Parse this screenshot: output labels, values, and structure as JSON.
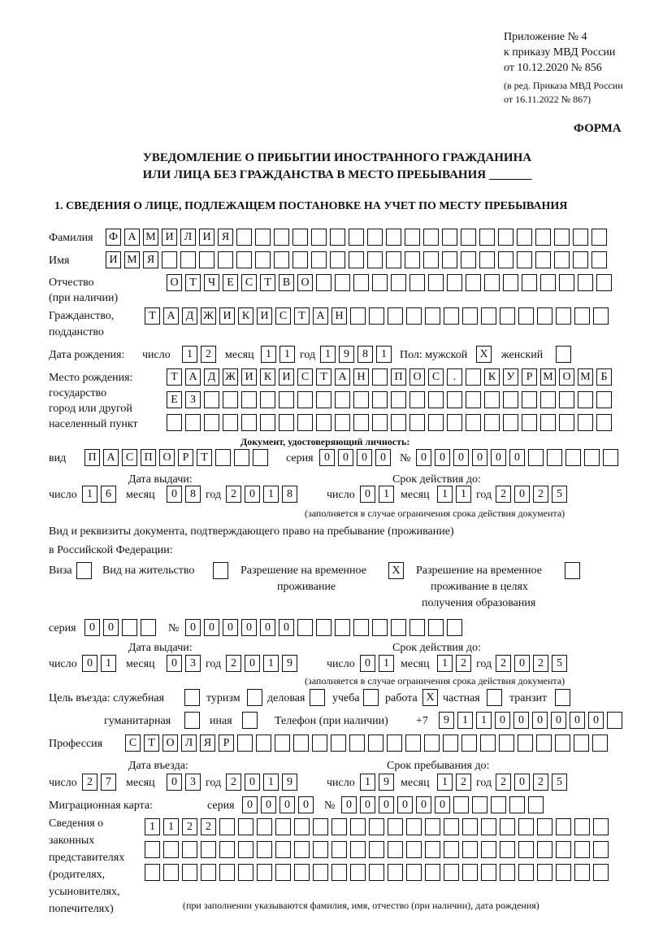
{
  "header": {
    "appendix": "Приложение № 4",
    "order": "к приказу МВД России",
    "order_date": "от 10.12.2020 № 856",
    "edit1": "(в ред. Приказа МВД России",
    "edit2": "от 16.11.2022 № 867)",
    "form": "ФОРМА",
    "title1": "УВЕДОМЛЕНИЕ О ПРИБЫТИИ ИНОСТРАННОГО ГРАЖДАНИНА",
    "title2": "ИЛИ ЛИЦА БЕЗ ГРАЖДАНСТВА В МЕСТО ПРЕБЫВАНИЯ _______",
    "section1": "1. СВЕДЕНИЯ О ЛИЦЕ, ПОДЛЕЖАЩЕМ ПОСТАНОВКЕ НА УЧЕТ ПО МЕСТУ ПРЕБЫВАНИЯ"
  },
  "person": {
    "surname_label": "Фамилия",
    "surname": "ФАМИЛИЯ",
    "name_label": "Имя",
    "name": "ИМЯ",
    "patronymic_label1": "Отчество",
    "patronymic_label2": "(при наличии)",
    "patronymic": "ОТЧЕСТВО",
    "citizenship_label1": "Гражданство,",
    "citizenship_label2": "подданство",
    "citizenship": "ТАДЖИКИСТАН",
    "birth_label": "Дата рождения:",
    "day_label": "число",
    "birth_day": "12",
    "month_label": "месяц",
    "birth_month": "11",
    "year_label": "год",
    "birth_year": "1981",
    "sex_label": "Пол: мужской",
    "male": "X",
    "female_label": "женский",
    "female": "",
    "birthplace_label1": "Место рождения:",
    "birthplace_label2": "государство",
    "birthplace_label3": "город или другой",
    "birthplace_label4": "населенный пункт",
    "birthplace_line1": "ТАДЖИКИСТАН ПОС. КУРМОМБ",
    "birthplace_line2": "ЕЗ",
    "birthplace_line3": ""
  },
  "id_doc": {
    "heading": "Документ, удостоверяющий личность:",
    "kind_label": "вид",
    "kind": "ПАСПОРТ",
    "series_label": "серия",
    "series": "0000",
    "number_label": "№",
    "number": "000000",
    "issue_label": "Дата выдачи:",
    "issue_day": "16",
    "issue_month": "08",
    "issue_year": "2018",
    "valid_label": "Срок действия до:",
    "valid_day": "01",
    "valid_month": "11",
    "valid_year": "2025",
    "note": "(заполняется в случае ограничения срока действия документа)"
  },
  "stay_doc": {
    "label1": "Вид и реквизиты документа, подтверждающего право на пребывание (проживание)",
    "label2": "в Российской Федерации:",
    "visa_label": "Виза",
    "visa": "",
    "residence_label": "Вид на жительство",
    "residence": "",
    "trp_label1": "Разрешение на временное",
    "trp_label2": "проживание",
    "trp": "X",
    "trp_edu_label1": "Разрешение на временное",
    "trp_edu_label2": "проживание в целях",
    "trp_edu_label3": "получения образования",
    "trp_edu": "",
    "series_label": "серия",
    "series": "00",
    "number_label": "№",
    "number": "000000",
    "issue_label": "Дата выдачи:",
    "issue_day": "01",
    "issue_month": "03",
    "issue_year": "2019",
    "valid_label": "Срок действия до:",
    "valid_day": "01",
    "valid_month": "12",
    "valid_year": "2025",
    "note": "(заполняется в случае ограничения срока действия документа)"
  },
  "purpose": {
    "label": "Цель въезда: служебная",
    "official": "",
    "tourism_label": "туризм",
    "tourism": "",
    "business_label": "деловая",
    "business": "",
    "study_label": "учеба",
    "study": "",
    "work_label": "работа",
    "work": "X",
    "private_label": "частная",
    "private": "",
    "transit_label": "транзит",
    "transit": "",
    "humanitarian_label": "гуманитарная",
    "humanitarian": "",
    "other_label": "иная",
    "other": "",
    "phone_label": "Телефон (при наличии)",
    "phone_prefix": "+7",
    "phone": "911000000"
  },
  "profession": {
    "label": "Профессия",
    "value": "СТОЛЯР"
  },
  "entry": {
    "entry_label": "Дата въезда:",
    "entry_day": "27",
    "entry_month": "03",
    "entry_year": "2019",
    "stay_label": "Срок пребывания до:",
    "stay_day": "19",
    "stay_month": "12",
    "stay_year": "2025"
  },
  "migration": {
    "label": "Миграционная карта:",
    "series_label": "серия",
    "series": "0000",
    "number_label": "№",
    "number": "000000"
  },
  "representatives": {
    "label1": "Сведения о",
    "label2": "законных",
    "label3": "представителях",
    "label4": "(родителях,",
    "label5": "усыновителях,",
    "label6": "попечителях)",
    "line1": "1122",
    "line2": "",
    "line3": "",
    "note": "(при заполнении указываются фамилия, имя, отчество (при наличии), дата рождения)"
  },
  "common": {
    "day": "число",
    "month": "месяц",
    "year": "год"
  }
}
